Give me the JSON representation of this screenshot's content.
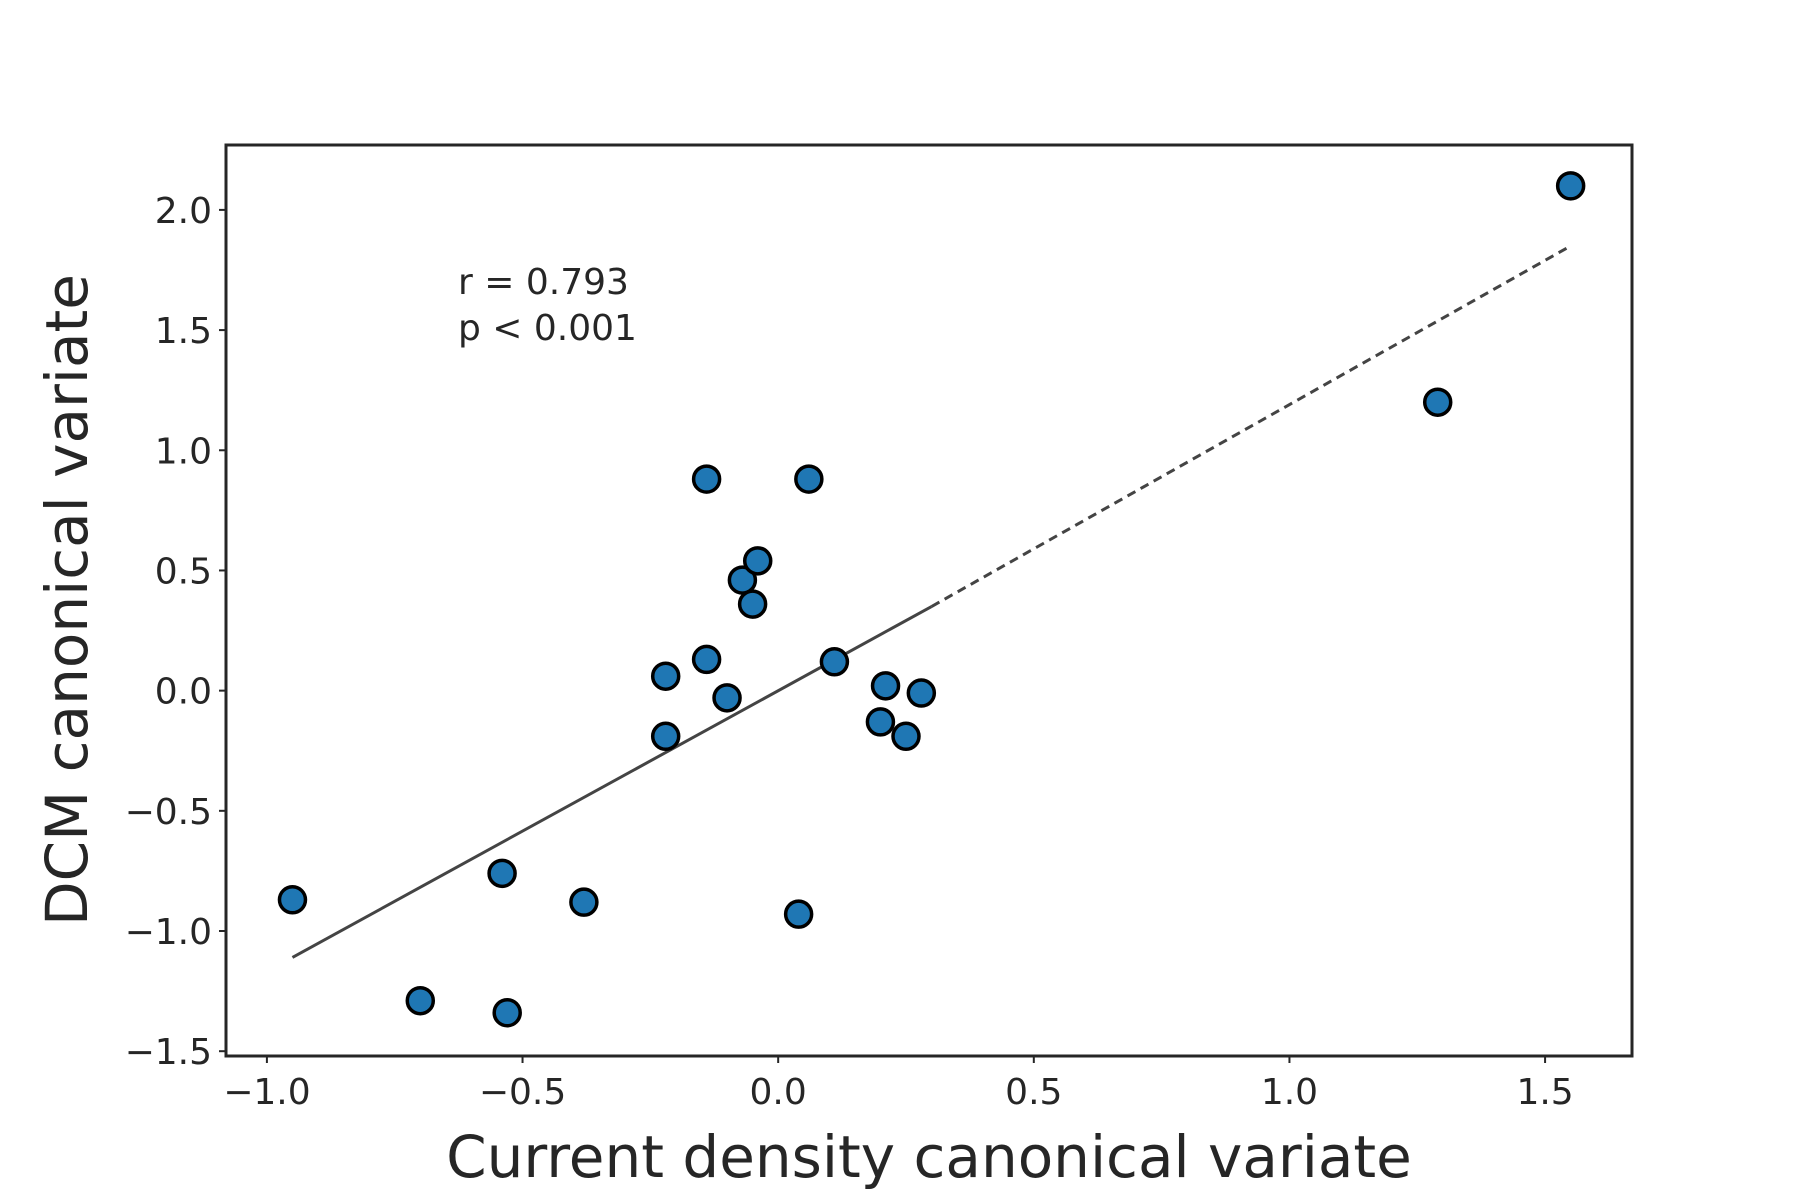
{
  "chart_data": {
    "type": "scatter",
    "xlabel": "Current density canonical variate",
    "ylabel": "DCM canonical variate",
    "xlim": [
      -1.08,
      1.67
    ],
    "ylim": [
      -1.52,
      2.27
    ],
    "xticks": [
      -1.0,
      -0.5,
      0.0,
      0.5,
      1.0,
      1.5
    ],
    "xtick_labels": [
      "−1.0",
      "−0.5",
      "0.0",
      "0.5",
      "1.0",
      "1.5"
    ],
    "yticks": [
      -1.5,
      -1.0,
      -0.5,
      0.0,
      0.5,
      1.0,
      1.5,
      2.0
    ],
    "ytick_labels": [
      "−1.5",
      "−1.0",
      "−0.5",
      "0.0",
      "0.5",
      "1.0",
      "1.5",
      "2.0"
    ],
    "grid": false,
    "annotations": [
      "r = 0.793",
      "p < 0.001"
    ],
    "points": [
      {
        "x": -0.95,
        "y": -0.87
      },
      {
        "x": -0.7,
        "y": -1.29
      },
      {
        "x": -0.54,
        "y": -0.76
      },
      {
        "x": -0.53,
        "y": -1.34
      },
      {
        "x": -0.38,
        "y": -0.88
      },
      {
        "x": -0.22,
        "y": 0.06
      },
      {
        "x": -0.22,
        "y": -0.19
      },
      {
        "x": -0.14,
        "y": 0.88
      },
      {
        "x": -0.14,
        "y": 0.13
      },
      {
        "x": -0.1,
        "y": -0.03
      },
      {
        "x": -0.07,
        "y": 0.46
      },
      {
        "x": -0.05,
        "y": 0.36
      },
      {
        "x": -0.04,
        "y": 0.54
      },
      {
        "x": 0.04,
        "y": -0.93
      },
      {
        "x": 0.06,
        "y": 0.88
      },
      {
        "x": 0.11,
        "y": 0.12
      },
      {
        "x": 0.2,
        "y": -0.13
      },
      {
        "x": 0.21,
        "y": 0.02
      },
      {
        "x": 0.25,
        "y": -0.19
      },
      {
        "x": 0.28,
        "y": -0.01
      },
      {
        "x": 1.29,
        "y": 1.2
      },
      {
        "x": 1.55,
        "y": 2.1
      }
    ],
    "fit_line": {
      "solid": {
        "x": [
          -0.95,
          0.3
        ],
        "y": [
          -1.11,
          0.35
        ]
      },
      "dashed": {
        "x": [
          0.3,
          1.55
        ],
        "y": [
          0.35,
          1.85
        ]
      }
    },
    "colors": {
      "point_fill": "#1f77b4",
      "point_edge": "#000000",
      "fit_line": "#444444",
      "axes": "#262626"
    }
  }
}
